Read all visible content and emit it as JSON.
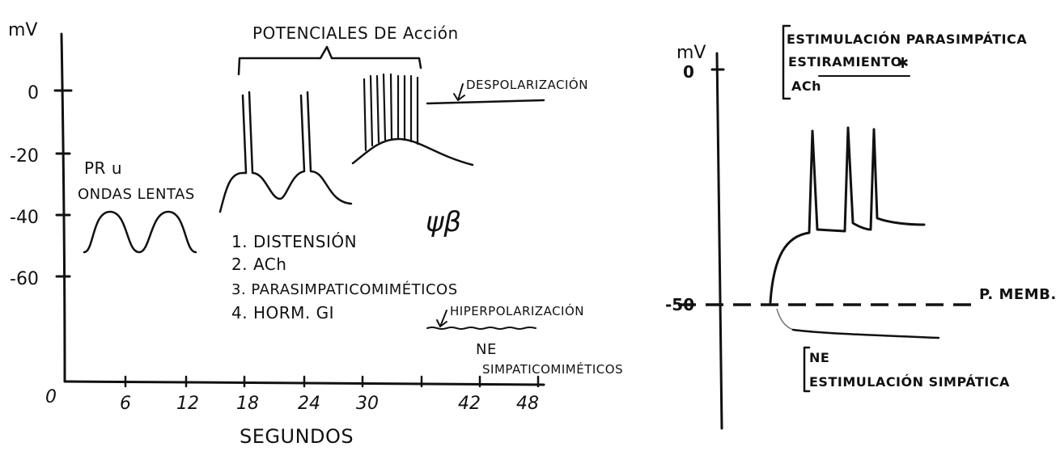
{
  "left_panel": {
    "y_unit": "mV",
    "y_ticks": [
      "0",
      "-20",
      "-40",
      "-60"
    ],
    "x_ticks": [
      "6",
      "12",
      "18",
      "24",
      "30",
      "42",
      "48"
    ],
    "origin": "0",
    "x_label": "SEGUNDOS",
    "action_potentials_label": "POTENCIALES DE Acción",
    "slow_waves_label_1": "PR u",
    "slow_waves_label_2": "ONDAS LENTAS",
    "depolarization_label": "DESPOLARIZACIÓN",
    "hyperpolarization_label": "HIPERPOLARIZACIÓN",
    "ne_label_1": "NE",
    "ne_label_2": "SIMPATICOMIMÉTICOS",
    "scribble": "ψβ",
    "list_items": [
      "1. DISTENSIÓN",
      "2. ACh",
      "3. PARASIMPATICOMIMÉTICOS",
      "4. HORM. GI"
    ]
  },
  "right_panel": {
    "y_unit": "mV",
    "y_top_tick": "0",
    "y_mid_tick": "-50",
    "membrane_label": "P. MEMB.",
    "stim_para_label": "ESTIMULACIÓN PARASIMPÁTICA",
    "stretch_label": "ESTIRAMIENTO",
    "ach_label": "ACh",
    "ne_label": "NE",
    "stim_symp_label": "ESTIMULACIÓN SIMPÁTICA"
  }
}
